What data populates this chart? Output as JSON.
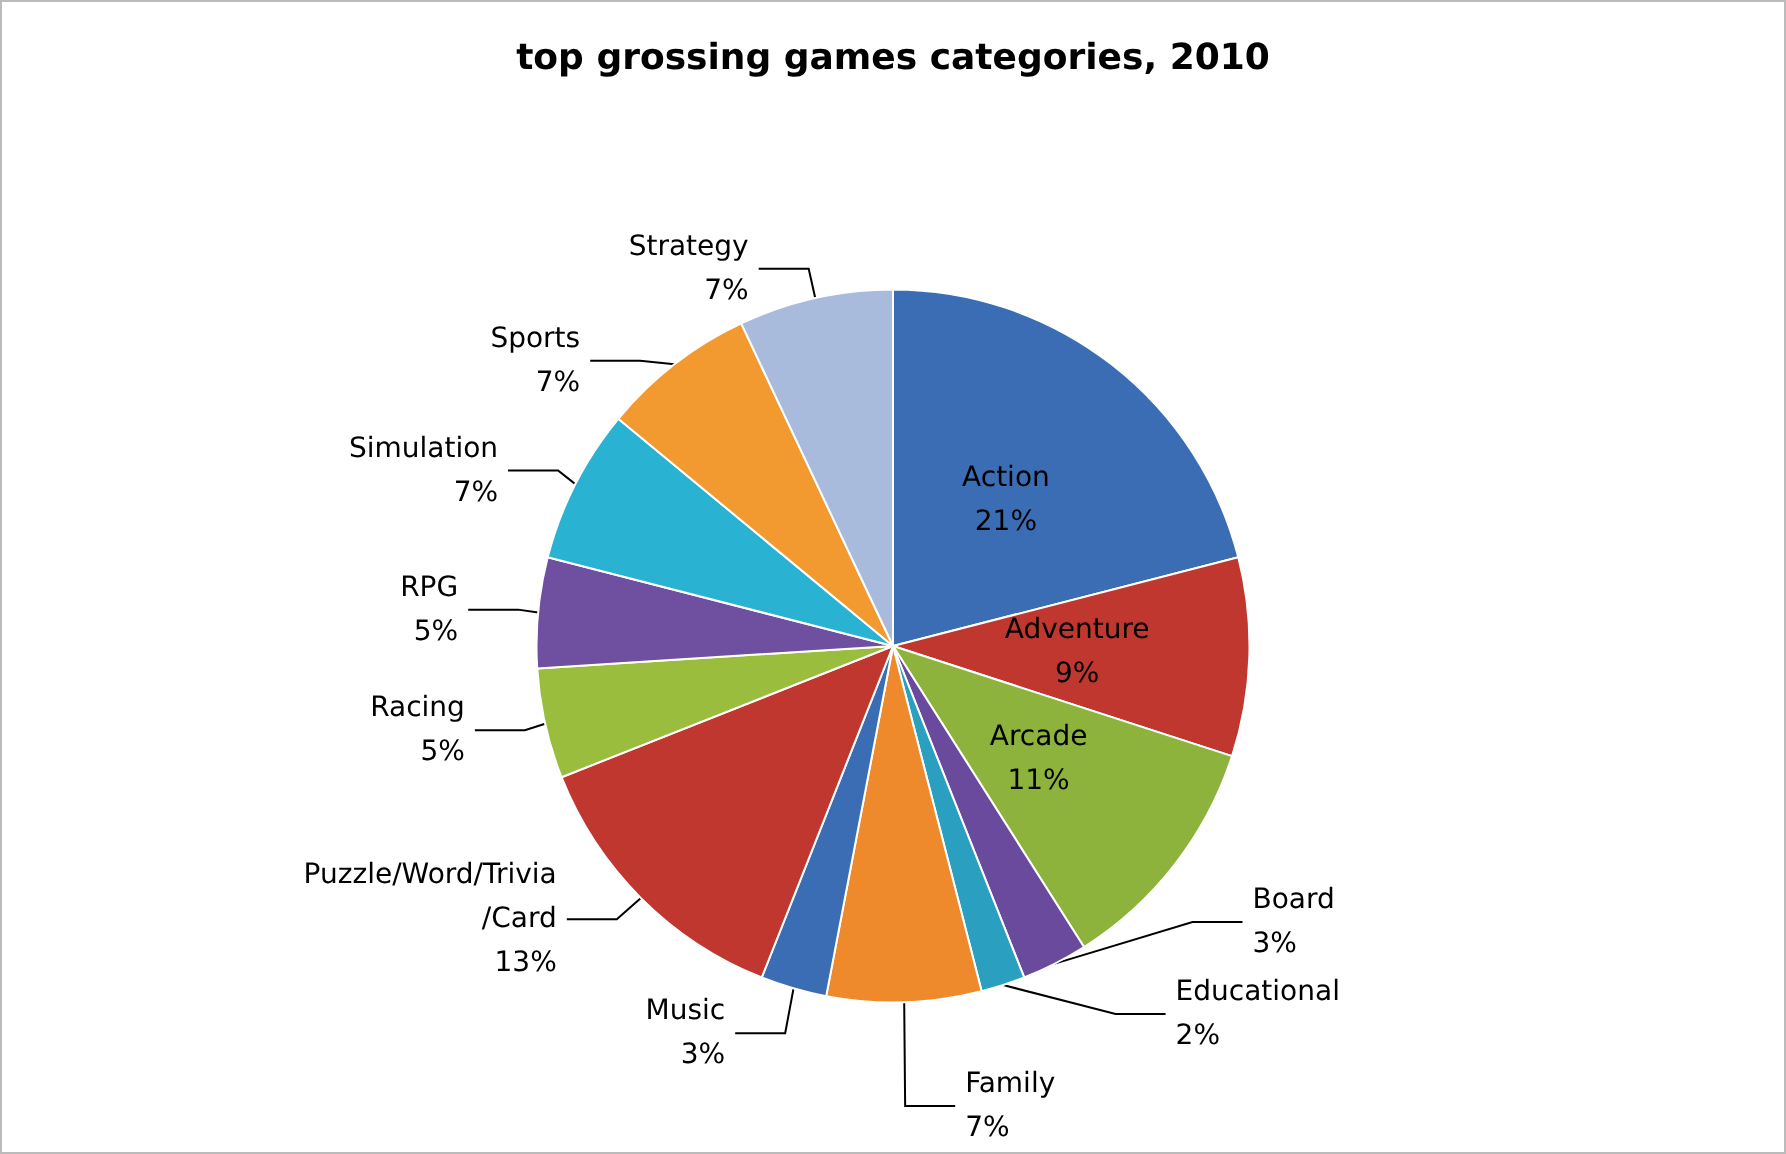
{
  "chart_data": {
    "type": "pie",
    "title": "top grossing games categories, 2010",
    "categories": [
      "Action",
      "Adventure",
      "Arcade",
      "Board",
      "Educational",
      "Family",
      "Music",
      "Puzzle/Word/Trivia/Card",
      "Racing",
      "RPG",
      "Simulation",
      "Sports",
      "Strategy"
    ],
    "values": [
      21,
      9,
      11,
      3,
      2,
      7,
      3,
      13,
      5,
      5,
      7,
      7,
      7
    ],
    "colors": [
      "#3b6db5",
      "#c0372f",
      "#8db33c",
      "#6a4a9c",
      "#2b9fc0",
      "#ee8a2c",
      "#3b6db5",
      "#c0372f",
      "#9abd3e",
      "#6e4fa0",
      "#2ab2d2",
      "#f29a30",
      "#a9bbdc"
    ],
    "value_labels": [
      "21%",
      "9%",
      "11%",
      "3%",
      "2%",
      "7%",
      "3%",
      "13%",
      "5%",
      "5%",
      "7%",
      "7%",
      "7%"
    ],
    "legend": false
  }
}
